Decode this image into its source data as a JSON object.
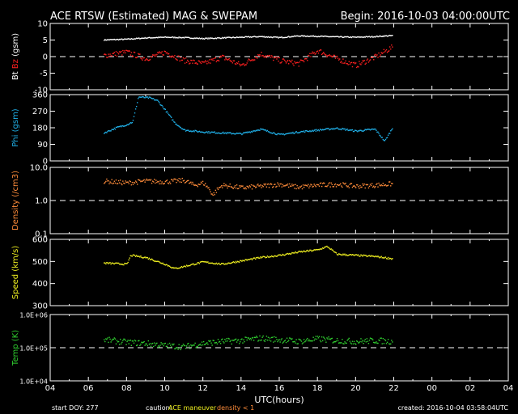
{
  "header": {
    "title": "ACE RTSW (Estimated) MAG & SWEPAM",
    "begin": "Begin: 2016-10-03 04:00:00UTC"
  },
  "footer": {
    "start_doy": "start DOY: 277",
    "caution_label": "caution:",
    "caution_maneuver": "ACE maneuver",
    "caution_density": "density < 1",
    "created": "created: 2016-10-04 03:58:04UTC"
  },
  "colors": {
    "bt": "#ffffff",
    "bz": "#ff2020",
    "phi": "#20b0e8",
    "density": "#ff8c3a",
    "speed": "#f0f020",
    "temp": "#30d030",
    "caution_maneuver": "#f0f020",
    "caution_density": "#ff8c3a",
    "axes": "#ffffff",
    "background": "#000000"
  },
  "chart_data": [
    {
      "type": "scatter",
      "panel": "bt-bz",
      "ylabel_parts": [
        "Bt",
        "Bz",
        "(gsm)"
      ],
      "ylim": [
        -10,
        10
      ],
      "yticks": [
        {
          "v": 10,
          "label": "10"
        },
        {
          "v": 5,
          "label": "5"
        },
        {
          "v": 0,
          "label": "0"
        },
        {
          "v": -5,
          "label": "-5"
        },
        {
          "v": -10,
          "label": "-10"
        }
      ],
      "reference_line": 0,
      "x_hours_since_begin": [
        2.8,
        4,
        5,
        6,
        7,
        8,
        9,
        10,
        11,
        12,
        13,
        14,
        15,
        16,
        17,
        17.9
      ],
      "series": [
        {
          "name": "Bt",
          "color": "#ffffff",
          "values": [
            5.2,
            5.4,
            5.8,
            6,
            5.9,
            5.6,
            5.8,
            6,
            6.2,
            5.9,
            6.4,
            6.3,
            6.1,
            6,
            6.2,
            6.5
          ]
        },
        {
          "name": "Bz",
          "color": "#ff2020",
          "values": [
            0.5,
            1.5,
            -0.5,
            1.5,
            -1,
            -2,
            0,
            -2.5,
            1,
            -1,
            -2,
            2,
            -0.5,
            -2.5,
            0,
            3
          ]
        }
      ]
    },
    {
      "type": "scatter",
      "panel": "phi",
      "ylabel": "Phi (gsm)",
      "ylim": [
        0,
        360
      ],
      "yticks": [
        {
          "v": 360,
          "label": "360"
        },
        {
          "v": 270,
          "label": "270"
        },
        {
          "v": 180,
          "label": "180"
        },
        {
          "v": 90,
          "label": "90"
        },
        {
          "v": 0,
          "label": "0"
        }
      ],
      "x_hours_since_begin": [
        2.8,
        3.5,
        4,
        4.3,
        4.6,
        5.2,
        5.6,
        6,
        6.5,
        7,
        8,
        9,
        10,
        11,
        12,
        13,
        14,
        15,
        16,
        17,
        17.5,
        17.9
      ],
      "values": [
        155,
        185,
        200,
        215,
        350,
        345,
        330,
        280,
        210,
        170,
        160,
        155,
        150,
        175,
        145,
        160,
        170,
        180,
        165,
        175,
        110,
        180
      ]
    },
    {
      "type": "scatter",
      "panel": "density",
      "ylabel": "Density (/cm3)",
      "yscale": "log",
      "ylim": [
        0.1,
        10
      ],
      "yticks": [
        {
          "v": 10,
          "label": "10.0"
        },
        {
          "v": 1,
          "label": "1.0"
        },
        {
          "v": 0.1,
          "label": "0.1"
        }
      ],
      "reference_line": 1,
      "x_hours_since_begin": [
        2.8,
        4,
        5,
        6,
        7,
        7.5,
        8,
        8.5,
        9,
        10,
        11,
        12,
        13,
        14,
        15,
        16,
        17,
        17.9
      ],
      "values": [
        4,
        3.5,
        4,
        3.8,
        4.2,
        3,
        3.5,
        1.5,
        3,
        2.5,
        2.8,
        3.2,
        2.6,
        3,
        3.2,
        2.8,
        3,
        3.3
      ]
    },
    {
      "type": "scatter",
      "panel": "speed",
      "ylabel": "Speed (km/s)",
      "ylim": [
        300,
        600
      ],
      "yticks": [
        {
          "v": 600,
          "label": "600"
        },
        {
          "v": 500,
          "label": "500"
        },
        {
          "v": 400,
          "label": "400"
        },
        {
          "v": 300,
          "label": "300"
        }
      ],
      "x_hours_since_begin": [
        2.8,
        4,
        4.2,
        5,
        6,
        6.5,
        7,
        8,
        9,
        10,
        11,
        12,
        13,
        14,
        14.5,
        15,
        16,
        17,
        17.9
      ],
      "values": [
        495,
        490,
        530,
        520,
        490,
        470,
        480,
        500,
        490,
        505,
        520,
        530,
        545,
        555,
        570,
        535,
        530,
        525,
        515
      ]
    },
    {
      "type": "scatter",
      "panel": "temp",
      "ylabel": "Temp (K)",
      "yscale": "log",
      "ylim": [
        10000,
        1000000
      ],
      "yticks": [
        {
          "v": 1000000,
          "label": "1.0E+06"
        },
        {
          "v": 100000,
          "label": "1.0E+05"
        },
        {
          "v": 10000,
          "label": "1.0E+04"
        }
      ],
      "reference_line": 100000,
      "x_hours_since_begin": [
        2.8,
        4,
        5,
        6,
        7,
        8,
        9,
        10,
        11,
        12,
        13,
        14,
        15,
        16,
        17,
        17.9
      ],
      "values": [
        180000,
        150000,
        140000,
        120000,
        110000,
        140000,
        160000,
        170000,
        200000,
        180000,
        160000,
        190000,
        170000,
        160000,
        170000,
        160000
      ]
    }
  ],
  "x_axis": {
    "label": "UTC(hours)",
    "tick_labels": [
      "04",
      "06",
      "08",
      "10",
      "12",
      "14",
      "16",
      "18",
      "20",
      "22",
      "00",
      "02",
      "04"
    ],
    "range_hours": [
      0,
      24
    ]
  }
}
